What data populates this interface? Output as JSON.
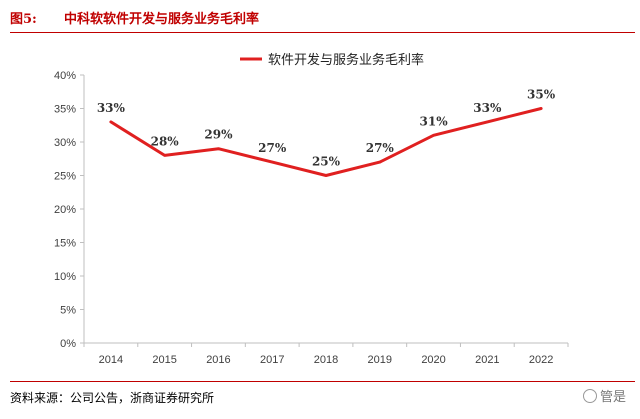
{
  "header": {
    "figure_number": "图5:",
    "figure_title": "中科软软件开发与服务业务毛利率"
  },
  "footer": {
    "source": "资料来源：公司公告，浙商证券研究所",
    "watermark": "管是"
  },
  "colors": {
    "accent": "#c00000",
    "series_line": "#e02020",
    "axis": "#bfbfbf",
    "text": "#404040"
  },
  "chart_data": {
    "type": "line",
    "title": "",
    "xlabel": "",
    "ylabel": "",
    "categories": [
      "2014",
      "2015",
      "2016",
      "2017",
      "2018",
      "2019",
      "2020",
      "2021",
      "2022"
    ],
    "series": [
      {
        "name": "软件开发与服务业务毛利率",
        "values": [
          33,
          28,
          29,
          27,
          25,
          27,
          31,
          33,
          35
        ],
        "labels": [
          "33%",
          "28%",
          "29%",
          "27%",
          "25%",
          "27%",
          "31%",
          "33%",
          "35%"
        ]
      }
    ],
    "yticks": [
      "0%",
      "5%",
      "10%",
      "15%",
      "20%",
      "25%",
      "30%",
      "35%",
      "40%"
    ],
    "ylim": [
      0,
      40
    ],
    "grid": false,
    "legend_position": "top-center"
  }
}
